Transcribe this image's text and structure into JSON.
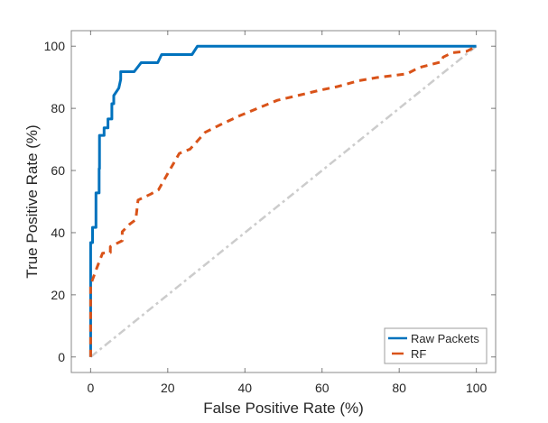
{
  "chart_data": {
    "type": "line",
    "title": "",
    "xlabel": "False Positive Rate (%)",
    "ylabel": "True Positive Rate (%)",
    "xlim": [
      -5,
      105
    ],
    "ylim": [
      -5,
      105
    ],
    "xticks": [
      0,
      20,
      40,
      60,
      80,
      100
    ],
    "yticks": [
      0,
      20,
      40,
      60,
      80,
      100
    ],
    "grid": false,
    "legend_position": "bottom-right",
    "series": [
      {
        "name": "Raw Packets",
        "color": "#0072BD",
        "style": "solid",
        "x": [
          0,
          0,
          0.5,
          0.5,
          1.4,
          1.4,
          2.2,
          2.2,
          2.3,
          2.3,
          3.5,
          3.5,
          4.5,
          4.5,
          5.5,
          5.5,
          6.0,
          6.0,
          7.3,
          7.8,
          7.8,
          11.3,
          13.1,
          17.4,
          18.4,
          26.3,
          27.7,
          100
        ],
        "y": [
          0,
          36.8,
          36.8,
          41.7,
          41.7,
          52.8,
          52.8,
          60.6,
          60.6,
          71.3,
          71.3,
          73.7,
          73.7,
          76.6,
          76.6,
          81.5,
          81.5,
          84.1,
          86.5,
          89.3,
          91.8,
          91.8,
          94.7,
          94.7,
          97.3,
          97.3,
          100,
          100
        ]
      },
      {
        "name": "RF",
        "color": "#D95319",
        "style": "dashed",
        "x": [
          0,
          0,
          1.6,
          3.1,
          5.1,
          5.1,
          8.2,
          8.2,
          10.1,
          11.7,
          12.3,
          15.6,
          17.6,
          20.3,
          23.0,
          25.8,
          29.7,
          33.6,
          38.6,
          43.7,
          48.4,
          54.6,
          59.3,
          64.0,
          69.5,
          74.2,
          82.0,
          85.1,
          91.0,
          91.4,
          93.7,
          97.6,
          100
        ],
        "y": [
          0,
          23.2,
          28.6,
          33.4,
          33.6,
          35.5,
          37.4,
          40.3,
          42.7,
          44.2,
          50.5,
          52.4,
          53.8,
          59.7,
          65.5,
          66.9,
          72.3,
          74.7,
          77.6,
          80.2,
          82.6,
          84.4,
          85.8,
          87.0,
          88.9,
          89.9,
          91.1,
          93.1,
          95.0,
          96.5,
          97.9,
          98.4,
          100
        ]
      },
      {
        "color": "#CCCCCC",
        "style": "dash-dot",
        "x": [
          0,
          100
        ],
        "y": [
          0,
          100
        ]
      }
    ]
  }
}
